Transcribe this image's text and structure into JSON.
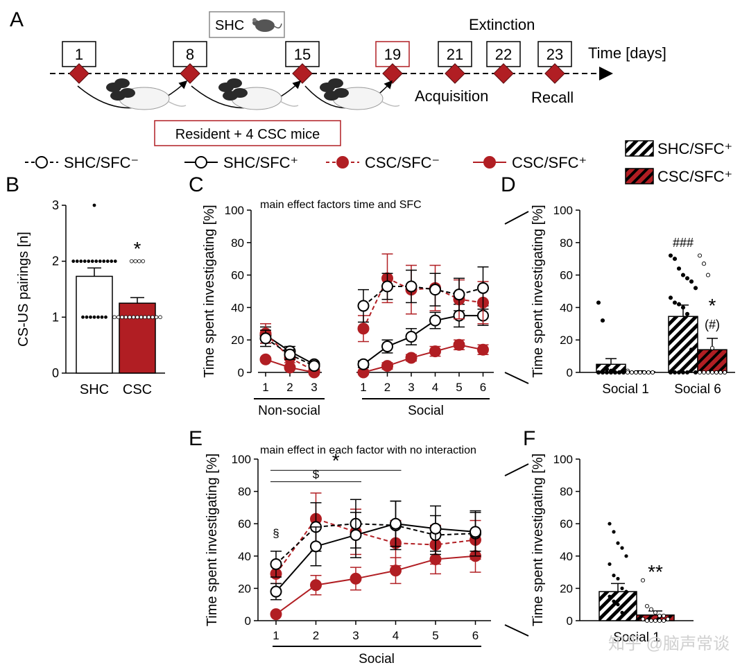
{
  "colors": {
    "red": "#b11e23",
    "black": "#000000",
    "box_red": "#b11e23"
  },
  "panel_labels": {
    "a": "A",
    "b": "B",
    "c": "C",
    "d": "D",
    "e": "E",
    "f": "F"
  },
  "timeline": {
    "time_label": "Time [days]",
    "days": [
      {
        "label": "1",
        "value": 1,
        "highlight": false
      },
      {
        "label": "8",
        "value": 8,
        "highlight": false
      },
      {
        "label": "15",
        "value": 15,
        "highlight": false
      },
      {
        "label": "19",
        "value": 19,
        "highlight": true
      },
      {
        "label": "21",
        "value": 21,
        "highlight": false
      },
      {
        "label": "22",
        "value": 22,
        "highlight": false
      },
      {
        "label": "23",
        "value": 23,
        "highlight": false
      }
    ],
    "shc_box": "SHC",
    "extinction": "Extinction",
    "acquisition": "Acquisition",
    "recall": "Recall",
    "resident_box": "Resident + 4 CSC mice",
    "mouse_icon": "mouse-icon",
    "cage_icon": "mice-group-icon"
  },
  "legend": {
    "items": [
      {
        "label": "SHC/SFC⁻",
        "style": "open-dashed"
      },
      {
        "label": "SHC/SFC⁺",
        "style": "open-solid"
      },
      {
        "label": "CSC/SFC⁻",
        "style": "filled-dashed"
      },
      {
        "label": "CSC/SFC⁺",
        "style": "filled-solid"
      }
    ],
    "hatch_items": [
      {
        "label": "SHC/SFC⁺",
        "fill": "hatch-white"
      },
      {
        "label": "CSC/SFC⁺",
        "fill": "hatch-red"
      }
    ]
  },
  "chart_data": [
    {
      "id": "B",
      "type": "bar",
      "ylabel": "CS-US pairings [n]",
      "ylim": [
        0,
        3
      ],
      "yticks": [
        0,
        1,
        2,
        3
      ],
      "categories": [
        "SHC",
        "CSC"
      ],
      "values": [
        1.73,
        1.25
      ],
      "errors": [
        0.15,
        0.1
      ],
      "annotations": [
        {
          "category": "CSC",
          "text": "*"
        }
      ],
      "points": {
        "SHC": {
          "3": 1,
          "2": 12,
          "1": 7
        },
        "CSC": {
          "2": 4,
          "1": 13
        }
      }
    },
    {
      "id": "C",
      "type": "line",
      "title": "main effect factors time and SFC",
      "ylabel": "Time spent investigating [%]",
      "ylim": [
        0,
        100
      ],
      "yticks": [
        0,
        20,
        40,
        60,
        80,
        100
      ],
      "groups": [
        {
          "label": "Non-social",
          "x": [
            1,
            2,
            3
          ]
        },
        {
          "label": "Social",
          "x": [
            1,
            2,
            3,
            4,
            5,
            6
          ]
        }
      ],
      "series": [
        {
          "name": "SHC/SFC⁻",
          "style": "open-dashed",
          "nonsocial": [
            21,
            11,
            4
          ],
          "nonsocial_err": [
            5,
            3,
            1
          ],
          "social": [
            41,
            53,
            53,
            51,
            48,
            52
          ],
          "social_err": [
            10,
            8,
            10,
            10,
            10,
            13
          ]
        },
        {
          "name": "SHC/SFC⁺",
          "style": "open-solid",
          "nonsocial": [
            23,
            13,
            5
          ],
          "nonsocial_err": [
            5,
            3,
            1
          ],
          "social": [
            5,
            16,
            22,
            32,
            35,
            35
          ],
          "social_err": [
            2,
            4,
            5,
            5,
            7,
            6
          ]
        },
        {
          "name": "CSC/SFC⁻",
          "style": "filled-dashed",
          "nonsocial": [
            24,
            9,
            1
          ],
          "nonsocial_err": [
            6,
            3,
            1
          ],
          "social": [
            27,
            58,
            51,
            52,
            45,
            43
          ],
          "social_err": [
            8,
            15,
            15,
            14,
            12,
            13
          ]
        },
        {
          "name": "CSC/SFC⁺",
          "style": "filled-solid",
          "nonsocial": [
            8,
            3,
            0
          ],
          "nonsocial_err": [
            1,
            1,
            0.5
          ],
          "social": [
            0,
            4,
            9,
            13,
            17,
            14
          ],
          "social_err": [
            1,
            2,
            2,
            3,
            3,
            3
          ]
        }
      ]
    },
    {
      "id": "D",
      "type": "bar",
      "ylabel": "Time spent investigating [%]",
      "ylim": [
        0,
        100
      ],
      "yticks": [
        0,
        20,
        40,
        60,
        80,
        100
      ],
      "categories": [
        "Social 1",
        "Social 6"
      ],
      "series": [
        {
          "name": "SHC/SFC⁺",
          "fill": "hatch-white",
          "values": [
            5,
            34.5
          ],
          "errors": [
            3.5,
            7
          ]
        },
        {
          "name": "CSC/SFC⁺",
          "fill": "hatch-red",
          "values": [
            0.5,
            14
          ],
          "errors": [
            0.5,
            7
          ]
        }
      ],
      "annotations": [
        {
          "text": "###",
          "category": "Social 6",
          "series": 0
        },
        {
          "text": "*",
          "category": "Social 6",
          "series": 1
        },
        {
          "text": "(#)",
          "category": "Social 6",
          "series": 1
        }
      ],
      "points": {
        "s1_shc": [
          43,
          32,
          2,
          1,
          0,
          0,
          0,
          0,
          0,
          0,
          0,
          0,
          0,
          0,
          0,
          0,
          0,
          0,
          0,
          0
        ],
        "s1_csc": [
          1,
          0,
          0,
          0,
          0,
          0,
          0,
          0,
          0,
          0,
          0,
          0,
          0,
          0
        ],
        "s6_shc": [
          72,
          70,
          64,
          60,
          58,
          56,
          52,
          46,
          43,
          42,
          40,
          36,
          14,
          0,
          0,
          0,
          0,
          0,
          0
        ],
        "s6_csc": [
          72,
          67,
          60,
          15,
          0,
          0,
          0,
          0,
          0,
          0,
          0,
          0,
          0,
          0
        ]
      }
    },
    {
      "id": "E",
      "type": "line",
      "title": "main effect in each factor with no interaction",
      "ylabel": "Time spent investigating [%]",
      "xlabel": "Social",
      "ylim": [
        0,
        100
      ],
      "yticks": [
        0,
        20,
        40,
        60,
        80,
        100
      ],
      "x": [
        1,
        2,
        3,
        4,
        5,
        6
      ],
      "brackets": [
        {
          "text": "*",
          "from": 1,
          "to": 4,
          "y": 93
        },
        {
          "text": "$",
          "from": 1,
          "to": 3,
          "y": 86
        }
      ],
      "annotations": [
        {
          "text": "§",
          "x": 1,
          "y": 50
        }
      ],
      "series": [
        {
          "name": "SHC/SFC⁻",
          "style": "open-dashed",
          "values": [
            35,
            58,
            60,
            59,
            53,
            54
          ],
          "errors": [
            8,
            15,
            15,
            15,
            12,
            14
          ]
        },
        {
          "name": "SHC/SFC⁺",
          "style": "open-solid",
          "values": [
            18,
            46,
            53,
            60,
            57,
            55
          ],
          "errors": [
            5,
            12,
            14,
            14,
            14,
            12
          ]
        },
        {
          "name": "CSC/SFC⁻",
          "style": "filled-dashed",
          "values": [
            29,
            63,
            55,
            48,
            47,
            50
          ],
          "errors": [
            6,
            16,
            14,
            14,
            12,
            12
          ]
        },
        {
          "name": "CSC/SFC⁺",
          "style": "filled-solid",
          "values": [
            4,
            22,
            26,
            31,
            38,
            40
          ],
          "errors": [
            1,
            6,
            7,
            8,
            9,
            10
          ]
        }
      ]
    },
    {
      "id": "F",
      "type": "bar",
      "ylabel": "Time spent investigating [%]",
      "ylim": [
        0,
        100
      ],
      "yticks": [
        0,
        20,
        40,
        60,
        80,
        100
      ],
      "categories": [
        "Social 1"
      ],
      "series": [
        {
          "name": "SHC/SFC⁺",
          "fill": "hatch-white",
          "values": [
            18
          ],
          "errors": [
            5
          ]
        },
        {
          "name": "CSC/SFC⁺",
          "fill": "hatch-red",
          "values": [
            3.5
          ],
          "errors": [
            2.5
          ]
        }
      ],
      "annotations": [
        {
          "text": "**",
          "series": 1
        }
      ],
      "points": {
        "shc": [
          60,
          55,
          48,
          45,
          40,
          35,
          28,
          26,
          20,
          18,
          15,
          12,
          10,
          5
        ],
        "csc": [
          25,
          9,
          7,
          5,
          3,
          3,
          1,
          1,
          0,
          0,
          0,
          0,
          0
        ]
      }
    }
  ],
  "watermark": "知乎 @脑声常谈"
}
